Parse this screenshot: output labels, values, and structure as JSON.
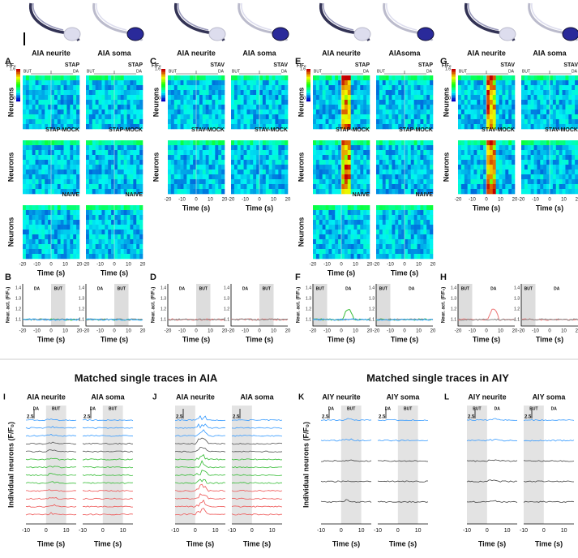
{
  "figure": {
    "groups": [
      {
        "letter": "A",
        "cells": [
          "AIA neurite",
          "AIA soma"
        ],
        "stim": [
          "BUT",
          "DA"
        ],
        "conditions": [
          "STAP",
          "STAP-MOCK",
          "NAIVE"
        ],
        "trace_letter": "B",
        "trace_stim": [
          "DA",
          "BUT"
        ]
      },
      {
        "letter": "C",
        "cells": [
          "AIA neurite",
          "AIA soma"
        ],
        "stim": [
          "BUT",
          "DA"
        ],
        "conditions": [
          "STAV",
          "STAV-MOCK"
        ],
        "trace_letter": "D",
        "trace_stim": [
          "DA",
          "BUT"
        ]
      },
      {
        "letter": "E",
        "cells": [
          "AIA neurite",
          "AIAsoma"
        ],
        "stim": [
          "BUT",
          "DA"
        ],
        "conditions": [
          "STAP",
          "STAP-MOCK",
          "NAIVE"
        ],
        "trace_letter": "F",
        "trace_stim": [
          "BUT",
          "DA"
        ]
      },
      {
        "letter": "G",
        "cells": [
          "AIA neurite",
          "AIA soma"
        ],
        "stim": [
          "BUT",
          "DA"
        ],
        "conditions": [
          "STAV",
          "STAV-MOCK"
        ],
        "trace_letter": "H",
        "trace_stim": [
          "BUT",
          "DA"
        ]
      }
    ],
    "colorbar": {
      "label": "F/F₀",
      "max": "1.6",
      "min": "1.0"
    },
    "heatmap_ylabel": "Neurons",
    "xlabel": "Time (s)",
    "heatmap_xticks": [
      "-20",
      "-10",
      "0",
      "10",
      "20"
    ],
    "trace_ylabel": "Neur. act. (F/F₀)",
    "trace_yticks": [
      "1.1",
      "1.2",
      "1.3",
      "1.4"
    ],
    "single": {
      "titles": [
        "Matched single traces in AIA",
        "Matched single traces in AIY"
      ],
      "panels": [
        {
          "letter": "I",
          "cells": [
            "AIA neurite",
            "AIA soma"
          ],
          "stim": [
            "DA",
            "BUT"
          ]
        },
        {
          "letter": "J",
          "cells": [
            "AIA neurite",
            "AIA soma"
          ]
        },
        {
          "letter": "K",
          "cells": [
            "AIY neurite",
            "AIY soma"
          ],
          "stim": [
            "DA",
            "BUT"
          ]
        },
        {
          "letter": "L",
          "cells": [
            "AIY neurite",
            "AIY soma"
          ],
          "stim": [
            "BUT",
            "DA"
          ]
        }
      ],
      "scale": "2.5",
      "ylabel": "Individual neurons (F/F₀)",
      "xticks": [
        "-10",
        "0",
        "10"
      ]
    }
  }
}
